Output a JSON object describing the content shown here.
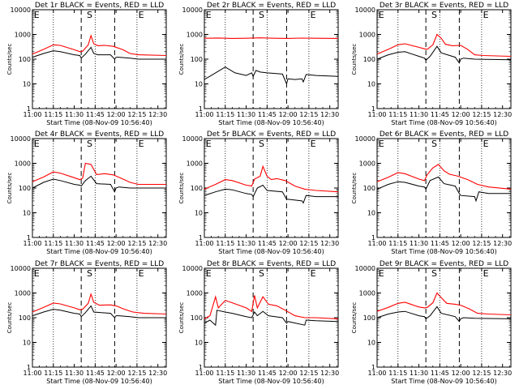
{
  "chart_data": {
    "type": "line",
    "y_scale": "log",
    "ylim": [
      1,
      10000
    ],
    "y_ticks": [
      1,
      10,
      100,
      1000,
      10000
    ],
    "x_tick_labels": [
      "11:00",
      "11:15",
      "11:30",
      "11:45",
      "12:00",
      "12:15",
      "12:30"
    ],
    "xlim_minutes": [
      0,
      96
    ],
    "x_ticks_minutes": [
      0,
      15,
      30,
      45,
      60,
      75,
      90
    ],
    "ylabel": "Counts/sec",
    "xlabel": "Start Time (08-Nov-09 10:56:40)",
    "grid": false,
    "dashed_markers_minutes": [
      35,
      59
    ],
    "dotted_markers_minutes": [
      15,
      45,
      75
    ],
    "marker_labels": [
      {
        "text": "E",
        "minutes": 1
      },
      {
        "text": "S",
        "minutes": 39
      },
      {
        "text": "E",
        "minutes": 76
      }
    ],
    "series_colors": {
      "events": "#000000",
      "lld": "#ff0000"
    },
    "panels": [
      {
        "title": "Det 1r BLACK = Events, RED = LLD",
        "lld": [
          [
            0,
            160
          ],
          [
            8,
            250
          ],
          [
            15,
            380
          ],
          [
            20,
            360
          ],
          [
            30,
            240
          ],
          [
            34,
            200
          ],
          [
            36,
            210
          ],
          [
            40,
            380
          ],
          [
            42,
            900
          ],
          [
            44,
            420
          ],
          [
            47,
            350
          ],
          [
            52,
            360
          ],
          [
            58,
            330
          ],
          [
            65,
            240
          ],
          [
            70,
            170
          ],
          [
            76,
            150
          ],
          [
            96,
            140
          ]
        ],
        "events": [
          [
            0,
            120
          ],
          [
            8,
            170
          ],
          [
            15,
            220
          ],
          [
            20,
            200
          ],
          [
            30,
            150
          ],
          [
            34,
            140
          ],
          [
            35,
            110
          ],
          [
            38,
            160
          ],
          [
            42,
            300
          ],
          [
            44,
            170
          ],
          [
            47,
            150
          ],
          [
            56,
            150
          ],
          [
            59,
            100
          ],
          [
            60,
            120
          ],
          [
            62,
            120
          ],
          [
            70,
            110
          ],
          [
            76,
            100
          ],
          [
            96,
            100
          ]
        ]
      },
      {
        "title": "Det 2r BLACK = Events, RED = LLD",
        "lld": [
          [
            0,
            700
          ],
          [
            10,
            720
          ],
          [
            20,
            690
          ],
          [
            30,
            700
          ],
          [
            40,
            730
          ],
          [
            50,
            700
          ],
          [
            60,
            690
          ],
          [
            70,
            710
          ],
          [
            80,
            700
          ],
          [
            96,
            690
          ]
        ],
        "events": [
          [
            0,
            15
          ],
          [
            5,
            22
          ],
          [
            15,
            48
          ],
          [
            22,
            28
          ],
          [
            30,
            22
          ],
          [
            34,
            28
          ],
          [
            35,
            20
          ],
          [
            37,
            35
          ],
          [
            40,
            30
          ],
          [
            45,
            28
          ],
          [
            56,
            25
          ],
          [
            59,
            10
          ],
          [
            60,
            16
          ],
          [
            65,
            15
          ],
          [
            70,
            16
          ],
          [
            71,
            12
          ],
          [
            73,
            24
          ],
          [
            80,
            22
          ],
          [
            96,
            20
          ]
        ]
      },
      {
        "title": "Det 3r BLACK = Events, RED = LLD",
        "lld": [
          [
            0,
            160
          ],
          [
            8,
            250
          ],
          [
            15,
            380
          ],
          [
            20,
            420
          ],
          [
            30,
            300
          ],
          [
            34,
            260
          ],
          [
            36,
            250
          ],
          [
            40,
            380
          ],
          [
            43,
            1000
          ],
          [
            46,
            700
          ],
          [
            49,
            400
          ],
          [
            54,
            350
          ],
          [
            60,
            360
          ],
          [
            65,
            250
          ],
          [
            70,
            150
          ],
          [
            76,
            140
          ],
          [
            96,
            130
          ]
        ],
        "events": [
          [
            0,
            100
          ],
          [
            8,
            150
          ],
          [
            15,
            190
          ],
          [
            20,
            200
          ],
          [
            30,
            130
          ],
          [
            34,
            110
          ],
          [
            35,
            90
          ],
          [
            38,
            130
          ],
          [
            43,
            330
          ],
          [
            46,
            180
          ],
          [
            56,
            120
          ],
          [
            59,
            70
          ],
          [
            60,
            100
          ],
          [
            62,
            110
          ],
          [
            70,
            100
          ],
          [
            96,
            95
          ]
        ]
      },
      {
        "title": "Det 4r BLACK = Events, RED = LLD",
        "lld": [
          [
            0,
            180
          ],
          [
            8,
            280
          ],
          [
            15,
            450
          ],
          [
            20,
            400
          ],
          [
            30,
            260
          ],
          [
            34,
            220
          ],
          [
            36,
            250
          ],
          [
            38,
            1000
          ],
          [
            42,
            900
          ],
          [
            46,
            350
          ],
          [
            52,
            380
          ],
          [
            58,
            340
          ],
          [
            65,
            230
          ],
          [
            70,
            170
          ],
          [
            76,
            140
          ],
          [
            96,
            140
          ]
        ],
        "events": [
          [
            0,
            100
          ],
          [
            8,
            170
          ],
          [
            15,
            230
          ],
          [
            20,
            200
          ],
          [
            30,
            140
          ],
          [
            34,
            130
          ],
          [
            35,
            120
          ],
          [
            38,
            200
          ],
          [
            42,
            300
          ],
          [
            46,
            150
          ],
          [
            56,
            140
          ],
          [
            59,
            70
          ],
          [
            60,
            100
          ],
          [
            62,
            110
          ],
          [
            70,
            100
          ],
          [
            96,
            100
          ]
        ]
      },
      {
        "title": "Det 5r BLACK = Events, RED = LLD",
        "lld": [
          [
            0,
            90
          ],
          [
            8,
            140
          ],
          [
            15,
            220
          ],
          [
            20,
            200
          ],
          [
            30,
            130
          ],
          [
            34,
            120
          ],
          [
            36,
            230
          ],
          [
            40,
            300
          ],
          [
            42,
            750
          ],
          [
            45,
            300
          ],
          [
            48,
            220
          ],
          [
            52,
            240
          ],
          [
            58,
            200
          ],
          [
            65,
            120
          ],
          [
            72,
            90
          ],
          [
            80,
            80
          ],
          [
            96,
            70
          ]
        ],
        "events": [
          [
            0,
            50
          ],
          [
            8,
            70
          ],
          [
            15,
            90
          ],
          [
            20,
            85
          ],
          [
            30,
            60
          ],
          [
            34,
            55
          ],
          [
            35,
            45
          ],
          [
            38,
            100
          ],
          [
            42,
            130
          ],
          [
            45,
            80
          ],
          [
            56,
            70
          ],
          [
            59,
            35
          ],
          [
            60,
            35
          ],
          [
            70,
            30
          ],
          [
            71,
            25
          ],
          [
            73,
            50
          ],
          [
            80,
            45
          ],
          [
            96,
            45
          ]
        ]
      },
      {
        "title": "Det 6r BLACK = Events, RED = LLD",
        "lld": [
          [
            0,
            180
          ],
          [
            8,
            270
          ],
          [
            15,
            420
          ],
          [
            20,
            380
          ],
          [
            30,
            230
          ],
          [
            34,
            200
          ],
          [
            36,
            350
          ],
          [
            40,
            650
          ],
          [
            44,
            900
          ],
          [
            48,
            500
          ],
          [
            52,
            360
          ],
          [
            58,
            300
          ],
          [
            65,
            220
          ],
          [
            72,
            140
          ],
          [
            80,
            110
          ],
          [
            96,
            90
          ]
        ],
        "events": [
          [
            0,
            90
          ],
          [
            8,
            140
          ],
          [
            15,
            180
          ],
          [
            20,
            170
          ],
          [
            30,
            120
          ],
          [
            34,
            110
          ],
          [
            35,
            90
          ],
          [
            38,
            200
          ],
          [
            44,
            280
          ],
          [
            48,
            150
          ],
          [
            56,
            120
          ],
          [
            59,
            60
          ],
          [
            60,
            50
          ],
          [
            70,
            45
          ],
          [
            71,
            30
          ],
          [
            73,
            70
          ],
          [
            80,
            60
          ],
          [
            96,
            60
          ]
        ]
      },
      {
        "title": "Det 7r BLACK = Events, RED = LLD",
        "lld": [
          [
            0,
            170
          ],
          [
            8,
            260
          ],
          [
            15,
            390
          ],
          [
            20,
            360
          ],
          [
            30,
            250
          ],
          [
            34,
            210
          ],
          [
            36,
            220
          ],
          [
            40,
            380
          ],
          [
            42,
            900
          ],
          [
            44,
            420
          ],
          [
            48,
            320
          ],
          [
            56,
            330
          ],
          [
            60,
            300
          ],
          [
            66,
            220
          ],
          [
            72,
            170
          ],
          [
            80,
            150
          ],
          [
            96,
            140
          ]
        ],
        "events": [
          [
            0,
            120
          ],
          [
            8,
            170
          ],
          [
            15,
            220
          ],
          [
            20,
            200
          ],
          [
            30,
            150
          ],
          [
            34,
            140
          ],
          [
            35,
            110
          ],
          [
            38,
            160
          ],
          [
            42,
            300
          ],
          [
            44,
            170
          ],
          [
            56,
            150
          ],
          [
            59,
            100
          ],
          [
            60,
            120
          ],
          [
            62,
            120
          ],
          [
            70,
            110
          ],
          [
            76,
            100
          ],
          [
            96,
            100
          ]
        ]
      },
      {
        "title": "Det 8r BLACK = Events, RED = LLD",
        "lld": [
          [
            0,
            90
          ],
          [
            4,
            120
          ],
          [
            8,
            700
          ],
          [
            10,
            250
          ],
          [
            15,
            500
          ],
          [
            20,
            400
          ],
          [
            30,
            250
          ],
          [
            34,
            180
          ],
          [
            36,
            800
          ],
          [
            38,
            250
          ],
          [
            42,
            700
          ],
          [
            46,
            350
          ],
          [
            52,
            300
          ],
          [
            58,
            200
          ],
          [
            65,
            120
          ],
          [
            72,
            100
          ],
          [
            80,
            100
          ],
          [
            96,
            90
          ]
        ],
        "events": [
          [
            0,
            60
          ],
          [
            4,
            80
          ],
          [
            8,
            50
          ],
          [
            9,
            200
          ],
          [
            15,
            170
          ],
          [
            20,
            150
          ],
          [
            30,
            110
          ],
          [
            34,
            100
          ],
          [
            36,
            170
          ],
          [
            38,
            120
          ],
          [
            42,
            180
          ],
          [
            46,
            120
          ],
          [
            56,
            100
          ],
          [
            59,
            60
          ],
          [
            60,
            70
          ],
          [
            72,
            50
          ],
          [
            73,
            80
          ],
          [
            80,
            75
          ],
          [
            96,
            70
          ]
        ]
      },
      {
        "title": "Det 9r BLACK = Events, RED = LLD",
        "lld": [
          [
            0,
            180
          ],
          [
            8,
            260
          ],
          [
            15,
            380
          ],
          [
            20,
            420
          ],
          [
            30,
            270
          ],
          [
            34,
            250
          ],
          [
            36,
            260
          ],
          [
            40,
            400
          ],
          [
            43,
            1000
          ],
          [
            46,
            650
          ],
          [
            50,
            380
          ],
          [
            56,
            350
          ],
          [
            60,
            320
          ],
          [
            66,
            230
          ],
          [
            72,
            150
          ],
          [
            80,
            140
          ],
          [
            96,
            130
          ]
        ],
        "events": [
          [
            0,
            100
          ],
          [
            8,
            140
          ],
          [
            15,
            170
          ],
          [
            20,
            180
          ],
          [
            30,
            120
          ],
          [
            34,
            110
          ],
          [
            35,
            90
          ],
          [
            38,
            120
          ],
          [
            43,
            280
          ],
          [
            46,
            150
          ],
          [
            56,
            110
          ],
          [
            59,
            70
          ],
          [
            60,
            90
          ],
          [
            62,
            100
          ],
          [
            70,
            95
          ],
          [
            96,
            90
          ]
        ]
      }
    ]
  }
}
